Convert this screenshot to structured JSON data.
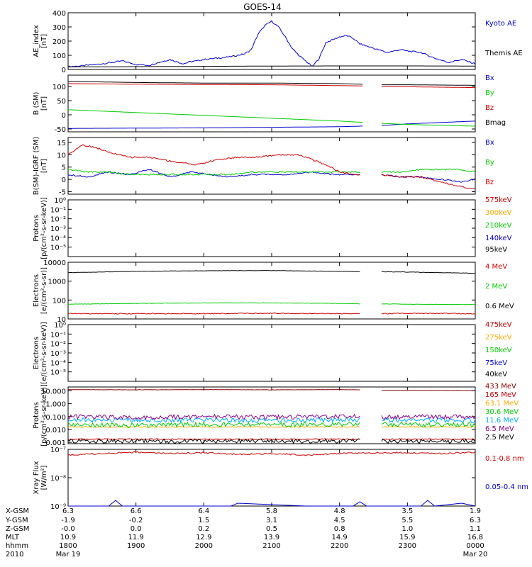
{
  "title": "GOES-14",
  "chart_data": [
    {
      "type": "line",
      "ylabel": [
        "AE_index",
        "[nT]"
      ],
      "yscale": "linear",
      "ylim": [
        0,
        400
      ],
      "yticks": [
        "0",
        "100",
        "200",
        "300",
        "400"
      ],
      "series": [
        {
          "name": "Kyoto AE",
          "color": "#0000cc",
          "x": [
            18.0,
            18.2,
            18.5,
            18.8,
            19.0,
            19.2,
            19.3,
            19.5,
            19.6,
            19.7,
            19.8,
            19.9,
            20.0,
            20.2,
            20.4,
            20.6,
            20.7,
            20.8,
            20.9,
            21.0,
            21.1,
            21.2,
            21.3,
            21.4,
            21.5,
            21.6,
            21.7,
            21.8,
            21.9,
            22.0,
            22.1,
            22.2,
            22.3,
            22.5,
            22.7,
            22.9,
            23.0,
            23.2,
            23.4,
            23.6,
            23.8,
            24.0
          ],
          "y": [
            20,
            25,
            40,
            60,
            35,
            30,
            45,
            70,
            55,
            40,
            55,
            60,
            70,
            80,
            90,
            110,
            140,
            250,
            310,
            340,
            300,
            230,
            150,
            100,
            60,
            20,
            80,
            190,
            210,
            230,
            240,
            220,
            180,
            150,
            120,
            140,
            130,
            120,
            80,
            50,
            70,
            40
          ]
        },
        {
          "name": "Themis AE",
          "color": "#000000",
          "x": [
            18.0,
            19.0,
            20.0,
            21.0,
            22.0,
            23.0,
            24.0
          ],
          "y": [
            18,
            20,
            22,
            24,
            25,
            25,
            24
          ]
        }
      ]
    },
    {
      "type": "line",
      "ylabel": [
        "B (SM)",
        "[nT]"
      ],
      "yscale": "linear",
      "ylim": [
        -60,
        140
      ],
      "yticks": [
        "-50",
        "0",
        "50",
        "100"
      ],
      "gap": [
        22.35,
        22.6
      ],
      "series": [
        {
          "name": "Bx",
          "color": "#0000cc",
          "x": [
            18,
            19,
            20,
            21,
            22,
            22.3,
            22.6,
            23,
            24
          ],
          "y": [
            -48,
            -47,
            -46,
            -44,
            -42,
            -40,
            -38,
            -32,
            -22
          ]
        },
        {
          "name": "By",
          "color": "#00cc00",
          "x": [
            18,
            19,
            20,
            21,
            22,
            22.3,
            22.6,
            23,
            24
          ],
          "y": [
            18,
            8,
            -2,
            -12,
            -22,
            -26,
            -30,
            -34,
            -40
          ]
        },
        {
          "name": "Bz",
          "color": "#cc0000",
          "x": [
            18,
            19,
            20,
            21,
            22,
            22.3,
            22.6,
            23,
            24
          ],
          "y": [
            110,
            108,
            107,
            106,
            103,
            102,
            100,
            99,
            96
          ]
        },
        {
          "name": "Bmag",
          "color": "#000000",
          "x": [
            18,
            19,
            20,
            21,
            22,
            22.3,
            22.6,
            23,
            24
          ],
          "y": [
            118,
            114,
            112,
            112,
            110,
            108,
            106,
            106,
            104
          ]
        }
      ]
    },
    {
      "type": "line",
      "ylabel": [
        "B(SM)-IGRF (SM)",
        "[nT]"
      ],
      "yscale": "linear",
      "ylim": [
        -6,
        17
      ],
      "yticks": [
        "-5",
        "0",
        "5",
        "10",
        "15"
      ],
      "gap": [
        22.3,
        22.6
      ],
      "series": [
        {
          "name": "Bx",
          "color": "#0000cc",
          "x": [
            18,
            18.3,
            18.6,
            18.9,
            19.2,
            19.5,
            19.8,
            20.1,
            20.4,
            20.7,
            21.0,
            21.3,
            21.6,
            21.9,
            22.2,
            22.6,
            22.9,
            23.2,
            23.5,
            23.8,
            24
          ],
          "y": [
            2,
            1,
            3,
            2,
            4,
            1,
            3,
            2,
            1,
            2,
            2,
            2,
            3,
            2,
            2,
            2,
            1,
            1,
            0,
            -1,
            0
          ]
        },
        {
          "name": "By",
          "color": "#00cc00",
          "x": [
            18,
            18.3,
            18.6,
            18.9,
            19.2,
            19.5,
            19.8,
            20.1,
            20.4,
            20.7,
            21.0,
            21.3,
            21.6,
            21.9,
            22.2,
            22.6,
            22.9,
            23.2,
            23.5,
            23.8,
            24
          ],
          "y": [
            4,
            3,
            3,
            2,
            2,
            2,
            2,
            2,
            2,
            3,
            3,
            3,
            3,
            3,
            3,
            3,
            3,
            4,
            4,
            4,
            3
          ]
        },
        {
          "name": "Bz",
          "color": "#cc0000",
          "x": [
            18,
            18.2,
            18.4,
            18.6,
            18.9,
            19.2,
            19.4,
            19.6,
            19.9,
            20.2,
            20.5,
            20.8,
            21.1,
            21.4,
            21.6,
            21.8,
            22.0,
            22.2,
            22.6,
            22.9,
            23.2,
            23.5,
            23.8,
            24
          ],
          "y": [
            10,
            14,
            13,
            11,
            9,
            9,
            8,
            7,
            6,
            8,
            9,
            9,
            10,
            10,
            8,
            6,
            3,
            2,
            2,
            1,
            1,
            -1,
            -3,
            -4
          ]
        }
      ]
    },
    {
      "type": "line",
      "ylabel": [
        "Protons",
        "[p/(cm²-s-sr-keV)]"
      ],
      "yscale": "log",
      "ylim": [
        -6,
        0
      ],
      "yticks": [
        "10⁻⁵",
        "10⁻⁴",
        "10⁻³",
        "10⁻²",
        "10⁻¹",
        "10⁰"
      ],
      "series": [
        {
          "name": "575keV",
          "color": "#cc0000",
          "x": [],
          "y": []
        },
        {
          "name": "300keV",
          "color": "#ffaa00",
          "x": [],
          "y": []
        },
        {
          "name": "210keV",
          "color": "#00cc00",
          "x": [],
          "y": []
        },
        {
          "name": "140keV",
          "color": "#0000cc",
          "x": [],
          "y": []
        },
        {
          "name": "95keV",
          "color": "#000000",
          "x": [],
          "y": []
        }
      ]
    },
    {
      "type": "line",
      "ylabel": [
        "Electrons",
        "[e/(cm²-s-sr)]"
      ],
      "yscale": "log",
      "ylim": [
        1,
        4
      ],
      "yticks": [
        "10",
        "100",
        "1000",
        "10000"
      ],
      "gap": [
        22.3,
        22.6
      ],
      "series": [
        {
          "name": "4 MeV",
          "color": "#cc0000",
          "x": [
            18,
            19,
            20,
            21,
            22,
            22.3,
            22.6,
            23,
            24
          ],
          "y": [
            1.28,
            1.28,
            1.28,
            1.3,
            1.28,
            1.28,
            1.28,
            1.3,
            1.28
          ]
        },
        {
          "name": "2 MeV",
          "color": "#00cc00",
          "x": [
            18,
            19,
            20,
            21,
            22,
            22.3,
            22.6,
            23,
            24
          ],
          "y": [
            1.78,
            1.82,
            1.85,
            1.85,
            1.82,
            1.8,
            1.8,
            1.78,
            1.76
          ]
        },
        {
          "name": "0.6 MeV",
          "color": "#000000",
          "x": [
            18,
            19,
            20,
            21,
            22,
            22.3,
            22.6,
            23,
            24
          ],
          "y": [
            3.45,
            3.52,
            3.55,
            3.56,
            3.52,
            3.5,
            3.5,
            3.48,
            3.42
          ]
        }
      ]
    },
    {
      "type": "line",
      "ylabel": [
        "Electrons",
        "[e/(cm²-s-sr-keV)]"
      ],
      "yscale": "log",
      "ylim": [
        -6,
        0
      ],
      "yticks": [
        "10⁻⁵",
        "10⁻⁴",
        "10⁻³",
        "10⁻²",
        "10⁻¹",
        "10⁰"
      ],
      "series": [
        {
          "name": "475keV",
          "color": "#cc0000",
          "x": [],
          "y": []
        },
        {
          "name": "275keV",
          "color": "#ffaa00",
          "x": [],
          "y": []
        },
        {
          "name": "150keV",
          "color": "#00cc00",
          "x": [],
          "y": []
        },
        {
          "name": "75keV",
          "color": "#0000cc",
          "x": [],
          "y": []
        },
        {
          "name": "40keV",
          "color": "#000000",
          "x": [],
          "y": []
        }
      ]
    },
    {
      "type": "line",
      "ylabel": [
        "Protons",
        "[p/(cm²-s-sr-keV)]"
      ],
      "yscale": "log",
      "ylim": [
        -3.1,
        1.3
      ],
      "yticks": [
        "0.001",
        "0.010",
        "0.100",
        "1.000",
        "10.000"
      ],
      "gap": [
        22.3,
        22.6
      ],
      "series": [
        {
          "name": "433 MeV",
          "color": "#880000",
          "x": [
            18,
            19,
            20,
            21,
            22,
            22.3,
            22.6,
            23,
            24
          ],
          "y": [
            1.1,
            1.08,
            1.1,
            1.08,
            1.1,
            1.08,
            1.04,
            1.05,
            1.02
          ]
        },
        {
          "name": "165 MeV",
          "color": "#cc0000",
          "x": [
            18,
            19,
            20,
            21,
            22,
            22.3,
            22.6,
            23,
            24
          ],
          "y": [
            -2.75,
            -2.75,
            -2.75,
            -2.75,
            -2.75,
            -2.75,
            -2.75,
            -2.75,
            -2.75
          ]
        },
        {
          "name": "63.1 MeV",
          "color": "#ffaa00",
          "x": [
            18,
            19,
            20,
            21,
            22,
            22.3,
            22.6,
            23,
            24
          ],
          "y": [
            -1.8,
            -1.8,
            -1.8,
            -1.8,
            -1.8,
            -1.8,
            -1.8,
            -1.8,
            -1.8
          ]
        },
        {
          "name": "30.6 MeV",
          "color": "#00cc00",
          "x": [
            18,
            19,
            20,
            21,
            22,
            22.3,
            22.6,
            23,
            24
          ],
          "y": [
            -1.6,
            -1.7,
            -1.6,
            -1.65,
            -1.6,
            -1.6,
            -1.6,
            -1.65,
            -1.6
          ]
        },
        {
          "name": "11.6 MeV",
          "color": "#00aaff",
          "x": [
            18,
            19,
            20,
            21,
            22,
            22.3,
            22.6,
            23,
            24
          ],
          "y": [
            -1.25,
            -1.3,
            -1.25,
            -1.3,
            -1.25,
            -1.25,
            -1.3,
            -1.25,
            -1.3
          ]
        },
        {
          "name": "6.5 MeV",
          "color": "#880088",
          "x": [
            18,
            19,
            20,
            21,
            22,
            22.3,
            22.6,
            23,
            24
          ],
          "y": [
            -1.0,
            -1.05,
            -1.0,
            -1.05,
            -1.0,
            -1.0,
            -1.05,
            -1.0,
            -1.05
          ]
        },
        {
          "name": "2.5 MeV",
          "color": "#000000",
          "x": [
            18,
            19,
            20,
            21,
            22,
            22.3,
            22.6,
            23,
            24
          ],
          "y": [
            -2.9,
            -2.9,
            -2.9,
            -2.9,
            -2.9,
            -2.9,
            -2.9,
            -2.9,
            -2.9
          ]
        }
      ]
    },
    {
      "type": "line",
      "ylabel": [
        "Xray Flux",
        "[W/m²]"
      ],
      "yscale": "log",
      "ylim": [
        -9,
        -7
      ],
      "yticks": [
        "10⁻⁹",
        "10⁻⁸",
        "10⁻⁷"
      ],
      "series": [
        {
          "name": "0.1-0.8 nm",
          "color": "#cc0000",
          "x": [
            18,
            18.5,
            19,
            19.5,
            20,
            20.5,
            21,
            21.5,
            22,
            22.5,
            23,
            23.5,
            24
          ],
          "y": [
            -7.2,
            -7.15,
            -7.1,
            -7.15,
            -7.12,
            -7.18,
            -7.15,
            -7.2,
            -7.15,
            -7.12,
            -7.12,
            -7.15,
            -7.1
          ]
        },
        {
          "name": "0.05-0.4 nm",
          "color": "#0000cc",
          "x": [
            18,
            18.6,
            18.7,
            18.8,
            20.4,
            20.5,
            21.5,
            22.2,
            22.3,
            22.4,
            23.2,
            23.3,
            23.4,
            23.8,
            24
          ],
          "y": [
            -9.0,
            -9.0,
            -8.8,
            -9.0,
            -9.0,
            -8.9,
            -9.0,
            -9.0,
            -8.85,
            -9.0,
            -9.0,
            -8.8,
            -9.0,
            -8.9,
            -9.0
          ]
        }
      ]
    }
  ],
  "ephemeris": {
    "labels": [
      "X-GSM",
      "Y-GSM",
      "Z-GSM",
      "MLT",
      "hhmm",
      "2010"
    ],
    "columns": [
      [
        "6.3",
        "-1.9",
        "-0.0",
        "10.9",
        "1800",
        "Mar 19"
      ],
      [
        "6.6",
        "-0.2",
        "0.0",
        "11.9",
        "1900",
        ""
      ],
      [
        "6.4",
        "1.5",
        "0.2",
        "12.9",
        "2000",
        ""
      ],
      [
        "5.8",
        "3.1",
        "0.5",
        "13.9",
        "2100",
        ""
      ],
      [
        "4.8",
        "4.5",
        "0.8",
        "14.9",
        "2200",
        ""
      ],
      [
        "3.5",
        "5.5",
        "1.0",
        "15.9",
        "2300",
        ""
      ],
      [
        "1.9",
        "6.3",
        "1.1",
        "16.8",
        "0000",
        "Mar 20"
      ]
    ]
  }
}
